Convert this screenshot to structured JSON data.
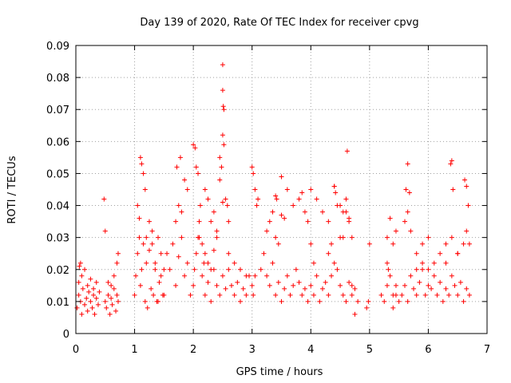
{
  "chart_data": {
    "type": "scatter",
    "title": "Day 139 of 2020, Rate Of TEC Index for receiver cpvg",
    "xlabel": "GPS time / hours",
    "ylabel": "ROTI / TECUs",
    "xlim": [
      0,
      7
    ],
    "ylim": [
      0,
      0.09
    ],
    "x_ticks": [
      "0",
      "1",
      "2",
      "3",
      "4",
      "5",
      "6",
      "7"
    ],
    "y_ticks": [
      "0",
      "0.01",
      "0.02",
      "0.03",
      "0.04",
      "0.05",
      "0.06",
      "0.07",
      "0.08",
      "0.09"
    ],
    "grid": true,
    "marker": "+",
    "color": "#ff0000",
    "series": [
      {
        "x": [
          0.02,
          0.05,
          0.08,
          0.1,
          0.12,
          0.15,
          0.18,
          0.2,
          0.22,
          0.25,
          0.28,
          0.3,
          0.32,
          0.35,
          0.38,
          0.4,
          0.05,
          0.1,
          0.15,
          0.2,
          0.25,
          0.3,
          0.35,
          0.06,
          0.08,
          0.5,
          0.52,
          0.55,
          0.58,
          0.6,
          0.62,
          0.65,
          0.68,
          0.7,
          0.72,
          0.55,
          0.6,
          0.65,
          0.48,
          0.5,
          0.7,
          0.72,
          1.0,
          1.02,
          1.05,
          1.08,
          1.1,
          1.12,
          1.15,
          1.18,
          1.2,
          1.22,
          1.25,
          1.28,
          1.3,
          1.32,
          1.35,
          1.38,
          1.4,
          1.42,
          1.45,
          1.48,
          1.5,
          1.1,
          1.12,
          1.15,
          1.18,
          1.05,
          1.08,
          1.2,
          1.25,
          1.3,
          1.35,
          1.4,
          1.45,
          1.5,
          1.55,
          1.6,
          1.65,
          1.7,
          1.75,
          1.8,
          1.85,
          1.9,
          1.95,
          1.72,
          1.78,
          1.85,
          1.9,
          1.7,
          1.75,
          1.8,
          2.0,
          2.02,
          2.05,
          2.08,
          2.1,
          2.12,
          2.15,
          2.18,
          2.2,
          2.25,
          2.3,
          2.35,
          2.4,
          2.45,
          2.5,
          2.55,
          2.6,
          2.65,
          2.7,
          2.75,
          2.8,
          2.85,
          2.9,
          2.95,
          2.0,
          2.03,
          2.05,
          2.08,
          2.2,
          2.25,
          2.3,
          2.35,
          2.4,
          2.45,
          2.5,
          2.5,
          2.51,
          2.52,
          2.5,
          2.52,
          2.5,
          2.55,
          2.58,
          2.6,
          2.45,
          2.48,
          2.1,
          2.15,
          2.2,
          2.25,
          2.3,
          2.35,
          2.4,
          2.6,
          2.7,
          2.8,
          2.9,
          3.0,
          3.02,
          3.05,
          3.08,
          3.1,
          3.0,
          3.02,
          3.05,
          3.15,
          3.2,
          3.25,
          3.3,
          3.35,
          3.4,
          3.45,
          3.5,
          3.55,
          3.6,
          3.65,
          3.7,
          3.75,
          3.8,
          3.85,
          3.9,
          3.95,
          3.25,
          3.3,
          3.35,
          3.4,
          3.45,
          3.5,
          3.6,
          3.7,
          3.8,
          3.85,
          3.9,
          3.95,
          3.4,
          3.42,
          3.5,
          3.55,
          4.0,
          4.05,
          4.1,
          4.15,
          4.2,
          4.25,
          4.3,
          4.35,
          4.4,
          4.45,
          4.5,
          4.55,
          4.6,
          4.65,
          4.7,
          4.75,
          4.8,
          4.0,
          4.1,
          4.2,
          4.3,
          4.4,
          4.5,
          4.55,
          4.6,
          4.65,
          4.7,
          4.4,
          4.42,
          4.45,
          4.6,
          4.65,
          4.62,
          4.55,
          4.0,
          4.05,
          4.3,
          4.35,
          4.5,
          4.7,
          4.75,
          4.95,
          4.98,
          5.0,
          5.2,
          5.25,
          5.3,
          5.35,
          5.4,
          5.45,
          5.5,
          5.3,
          5.35,
          5.4,
          5.45,
          5.3,
          5.32,
          5.4,
          5.45,
          5.55,
          5.6,
          5.65,
          5.7,
          5.75,
          5.8,
          5.85,
          5.9,
          5.95,
          6.0,
          6.05,
          6.1,
          6.15,
          6.2,
          6.25,
          6.3,
          6.35,
          6.4,
          6.45,
          6.5,
          6.55,
          6.6,
          6.65,
          6.7,
          5.6,
          5.65,
          5.7,
          5.8,
          5.9,
          6.0,
          6.1,
          6.2,
          6.3,
          6.4,
          6.5,
          6.6,
          6.65,
          5.62,
          5.65,
          5.68,
          6.38,
          6.4,
          6.42,
          6.62,
          6.65,
          6.68,
          5.8,
          5.9,
          6.0,
          6.3,
          6.5,
          6.7
        ],
        "y": [
          0.008,
          0.012,
          0.01,
          0.006,
          0.014,
          0.009,
          0.011,
          0.007,
          0.013,
          0.01,
          0.008,
          0.012,
          0.006,
          0.011,
          0.009,
          0.013,
          0.016,
          0.018,
          0.02,
          0.015,
          0.017,
          0.014,
          0.016,
          0.021,
          0.022,
          0.01,
          0.008,
          0.012,
          0.006,
          0.011,
          0.009,
          0.014,
          0.007,
          0.012,
          0.01,
          0.016,
          0.015,
          0.018,
          0.042,
          0.032,
          0.022,
          0.025,
          0.012,
          0.018,
          0.025,
          0.03,
          0.015,
          0.02,
          0.028,
          0.01,
          0.022,
          0.008,
          0.026,
          0.014,
          0.032,
          0.012,
          0.02,
          0.01,
          0.03,
          0.016,
          0.025,
          0.012,
          0.02,
          0.055,
          0.053,
          0.05,
          0.045,
          0.04,
          0.036,
          0.03,
          0.035,
          0.028,
          0.022,
          0.01,
          0.018,
          0.012,
          0.025,
          0.02,
          0.028,
          0.015,
          0.024,
          0.03,
          0.018,
          0.022,
          0.012,
          0.052,
          0.055,
          0.048,
          0.045,
          0.035,
          0.04,
          0.038,
          0.015,
          0.02,
          0.025,
          0.03,
          0.035,
          0.04,
          0.018,
          0.022,
          0.012,
          0.016,
          0.01,
          0.02,
          0.015,
          0.012,
          0.018,
          0.014,
          0.02,
          0.015,
          0.012,
          0.016,
          0.01,
          0.014,
          0.012,
          0.018,
          0.059,
          0.058,
          0.052,
          0.05,
          0.045,
          0.042,
          0.035,
          0.038,
          0.032,
          0.048,
          0.084,
          0.076,
          0.071,
          0.07,
          0.062,
          0.059,
          0.041,
          0.042,
          0.04,
          0.035,
          0.055,
          0.052,
          0.03,
          0.028,
          0.025,
          0.022,
          0.02,
          0.026,
          0.03,
          0.025,
          0.022,
          0.02,
          0.018,
          0.052,
          0.05,
          0.045,
          0.04,
          0.042,
          0.015,
          0.012,
          0.018,
          0.02,
          0.025,
          0.018,
          0.015,
          0.022,
          0.012,
          0.016,
          0.01,
          0.014,
          0.018,
          0.012,
          0.015,
          0.02,
          0.016,
          0.012,
          0.014,
          0.01,
          0.032,
          0.035,
          0.038,
          0.03,
          0.028,
          0.049,
          0.045,
          0.04,
          0.042,
          0.044,
          0.038,
          0.035,
          0.043,
          0.042,
          0.037,
          0.036,
          0.015,
          0.012,
          0.018,
          0.01,
          0.014,
          0.016,
          0.012,
          0.018,
          0.022,
          0.02,
          0.015,
          0.012,
          0.01,
          0.016,
          0.012,
          0.014,
          0.01,
          0.045,
          0.042,
          0.038,
          0.035,
          0.046,
          0.04,
          0.038,
          0.042,
          0.036,
          0.03,
          0.046,
          0.044,
          0.04,
          0.038,
          0.035,
          0.057,
          0.03,
          0.028,
          0.022,
          0.025,
          0.028,
          0.03,
          0.015,
          0.006,
          0.008,
          0.01,
          0.028,
          0.012,
          0.01,
          0.015,
          0.018,
          0.008,
          0.012,
          0.01,
          0.03,
          0.036,
          0.028,
          0.032,
          0.022,
          0.02,
          0.012,
          0.015,
          0.012,
          0.015,
          0.01,
          0.018,
          0.014,
          0.012,
          0.016,
          0.02,
          0.012,
          0.015,
          0.014,
          0.018,
          0.012,
          0.016,
          0.01,
          0.014,
          0.012,
          0.018,
          0.015,
          0.012,
          0.016,
          0.01,
          0.014,
          0.012,
          0.035,
          0.038,
          0.032,
          0.025,
          0.028,
          0.03,
          0.022,
          0.025,
          0.028,
          0.03,
          0.025,
          0.028,
          0.032,
          0.045,
          0.053,
          0.044,
          0.053,
          0.054,
          0.045,
          0.048,
          0.046,
          0.04,
          0.02,
          0.022,
          0.02,
          0.022,
          0.025,
          0.028
        ]
      }
    ]
  }
}
